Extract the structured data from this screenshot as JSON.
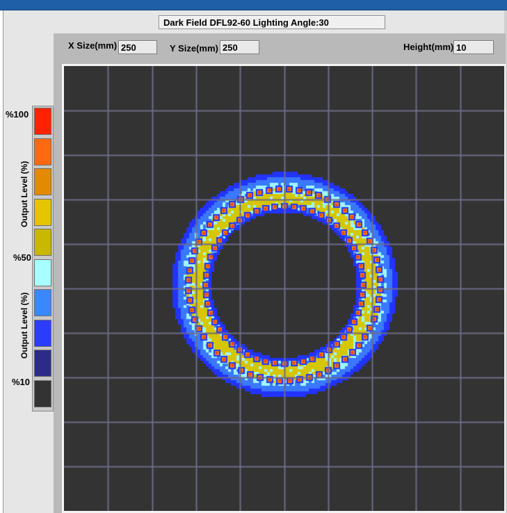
{
  "window": {
    "title": "Dark Field DFL92-60 Lighting Angle:30"
  },
  "params": {
    "x_size_label": "X Size(mm)",
    "x_size_value": "250",
    "y_size_label": "Y Size(mm)",
    "y_size_value": "250",
    "height_label": "Height(mm)",
    "height_value": "10"
  },
  "legend": {
    "top_label": "%100",
    "mid_label": "%50",
    "bottom_label": "%10",
    "axis_title_upper": "Output Level (%)",
    "axis_title_lower": "Output Level (%)",
    "swatches": [
      "#ff2200",
      "#ff6a10",
      "#e48a00",
      "#e6c400",
      "#c8b800",
      "#a8ffff",
      "#3a88ff",
      "#2c3cff",
      "#2c2c88",
      "#333333"
    ]
  },
  "plot": {
    "background": "#333333",
    "grid_color": "#6c6c88",
    "grid_divisions": 10,
    "ring_colors": {
      "outer_glow": "#2233ff",
      "blue": "#3a78ff",
      "cyan": "#9ff7ff",
      "yellow": "#d6c600",
      "orange": "#f07a10",
      "red": "#ff3a00"
    }
  }
}
